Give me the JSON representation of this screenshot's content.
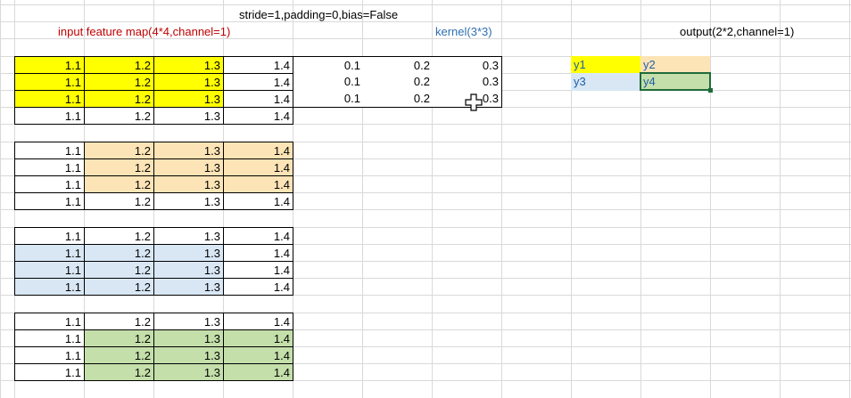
{
  "colors": {
    "yellow": "#ffff00",
    "peach": "#fce4b6",
    "blue": "#d9e7f5",
    "green": "#c4dfaa",
    "red_title": "#c00000",
    "blue_title": "#2f6fb0"
  },
  "headers": {
    "stride": "stride=1,padding=0,bias=False",
    "input": "input feature map(4*4,channel=1)",
    "kernel": "kernel(3*3)",
    "output": "output(2*2,channel=1)"
  },
  "input_blocks": [
    {
      "rows": [
        [
          "1.1",
          "1.2",
          "1.3",
          "1.4"
        ],
        [
          "1.1",
          "1.2",
          "1.3",
          "1.4"
        ],
        [
          "1.1",
          "1.2",
          "1.3",
          "1.4"
        ],
        [
          "1.1",
          "1.2",
          "1.3",
          "1.4"
        ]
      ],
      "highlight": {
        "color": "yellow",
        "rows": [
          0,
          1,
          2
        ],
        "cols": [
          0,
          1,
          2
        ]
      }
    },
    {
      "rows": [
        [
          "1.1",
          "1.2",
          "1.3",
          "1.4"
        ],
        [
          "1.1",
          "1.2",
          "1.3",
          "1.4"
        ],
        [
          "1.1",
          "1.2",
          "1.3",
          "1.4"
        ],
        [
          "1.1",
          "1.2",
          "1.3",
          "1.4"
        ]
      ],
      "highlight": {
        "color": "peach",
        "rows": [
          0,
          1,
          2
        ],
        "cols": [
          1,
          2,
          3
        ]
      }
    },
    {
      "rows": [
        [
          "1.1",
          "1.2",
          "1.3",
          "1.4"
        ],
        [
          "1.1",
          "1.2",
          "1.3",
          "1.4"
        ],
        [
          "1.1",
          "1.2",
          "1.3",
          "1.4"
        ],
        [
          "1.1",
          "1.2",
          "1.3",
          "1.4"
        ]
      ],
      "highlight": {
        "color": "blue",
        "rows": [
          1,
          2,
          3
        ],
        "cols": [
          0,
          1,
          2
        ]
      }
    },
    {
      "rows": [
        [
          "1.1",
          "1.2",
          "1.3",
          "1.4"
        ],
        [
          "1.1",
          "1.2",
          "1.3",
          "1.4"
        ],
        [
          "1.1",
          "1.2",
          "1.3",
          "1.4"
        ],
        [
          "1.1",
          "1.2",
          "1.3",
          "1.4"
        ]
      ],
      "highlight": {
        "color": "green",
        "rows": [
          1,
          2,
          3
        ],
        "cols": [
          1,
          2,
          3
        ]
      }
    }
  ],
  "kernel": [
    [
      "0.1",
      "0.2",
      "0.3"
    ],
    [
      "0.1",
      "0.2",
      "0.3"
    ],
    [
      "0.1",
      "0.2",
      "0.3"
    ]
  ],
  "output": [
    [
      {
        "label": "y1",
        "color": "yellow"
      },
      {
        "label": "y2",
        "color": "peach"
      }
    ],
    [
      {
        "label": "y3",
        "color": "blue"
      },
      {
        "label": "y4",
        "color": "green"
      }
    ]
  ],
  "active_cell": "y4",
  "cursor_icon": "crosshair-cursor-icon"
}
